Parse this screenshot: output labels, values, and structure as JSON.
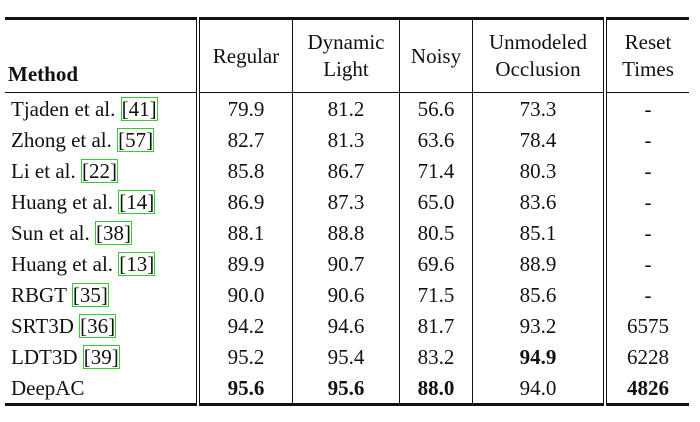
{
  "table": {
    "header": [
      [
        "Method"
      ],
      [
        "Regular"
      ],
      [
        "Dynamic",
        "Light"
      ],
      [
        "Noisy"
      ],
      [
        "Unmodeled",
        "Occlusion"
      ],
      [
        "Reset",
        "Times"
      ]
    ],
    "rows": [
      {
        "method": "Tjaden et al.",
        "cite": "[41]",
        "cells": [
          "79.9",
          "81.2",
          "56.6",
          "73.3",
          "-"
        ],
        "bold": []
      },
      {
        "method": "Zhong et al.",
        "cite": "[57]",
        "cells": [
          "82.7",
          "81.3",
          "63.6",
          "78.4",
          "-"
        ],
        "bold": []
      },
      {
        "method": "Li et al.",
        "cite": "[22]",
        "cells": [
          "85.8",
          "86.7",
          "71.4",
          "80.3",
          "-"
        ],
        "bold": []
      },
      {
        "method": "Huang et al.",
        "cite": "[14]",
        "cells": [
          "86.9",
          "87.3",
          "65.0",
          "83.6",
          "-"
        ],
        "bold": []
      },
      {
        "method": "Sun et al.",
        "cite": "[38]",
        "cells": [
          "88.1",
          "88.8",
          "80.5",
          "85.1",
          "-"
        ],
        "bold": []
      },
      {
        "method": "Huang et al.",
        "cite": "[13]",
        "cells": [
          "89.9",
          "90.7",
          "69.6",
          "88.9",
          "-"
        ],
        "bold": []
      },
      {
        "method": "RBGT",
        "cite": "[35]",
        "cells": [
          "90.0",
          "90.6",
          "71.5",
          "85.6",
          "-"
        ],
        "bold": []
      },
      {
        "method": "SRT3D",
        "cite": "[36]",
        "cells": [
          "94.2",
          "94.6",
          "81.7",
          "93.2",
          "6575"
        ],
        "bold": []
      },
      {
        "method": "LDT3D",
        "cite": "[39]",
        "cells": [
          "95.2",
          "95.4",
          "83.2",
          "94.9",
          "6228"
        ],
        "bold": [
          3
        ]
      },
      {
        "method": "DeepAC",
        "cite": null,
        "cells": [
          "95.6",
          "95.6",
          "88.0",
          "94.0",
          "4826"
        ],
        "bold": [
          0,
          1,
          2,
          4
        ]
      }
    ]
  }
}
